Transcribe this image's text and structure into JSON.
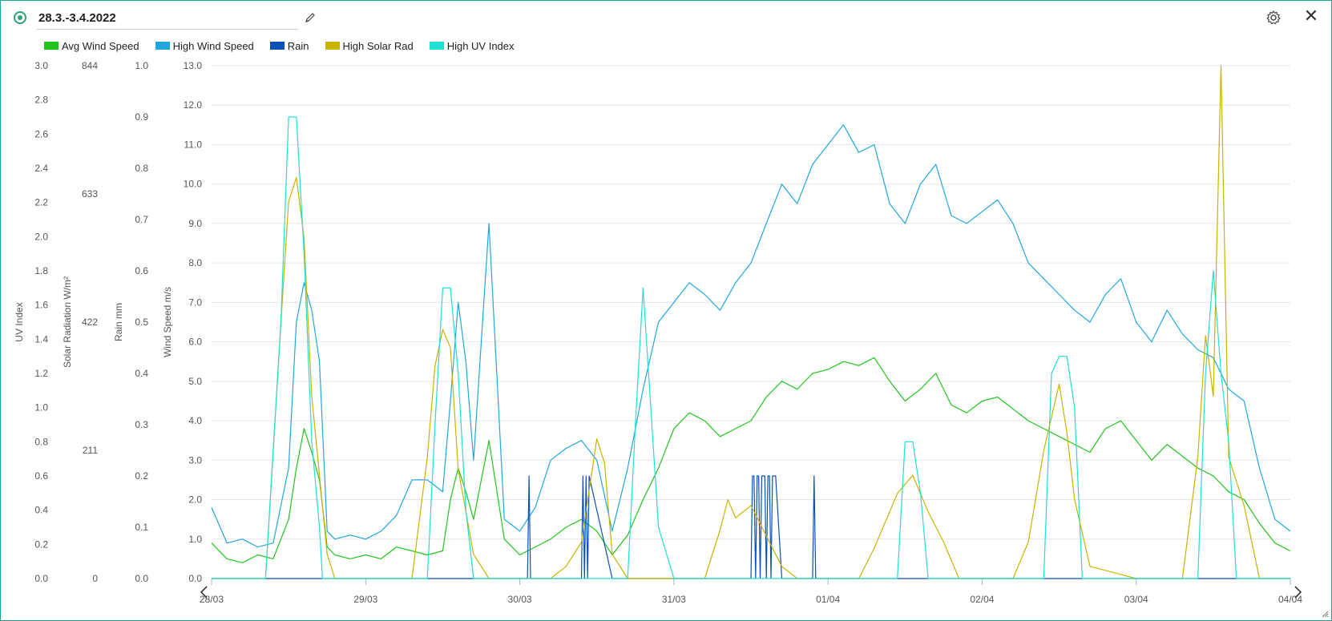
{
  "window": {
    "title": "28.3.-3.4.2022",
    "close_label": "✕"
  },
  "icons": {
    "status": "status-dot-icon",
    "edit": "pencil-icon",
    "settings": "gear-icon",
    "close": "close-icon"
  },
  "legend": [
    {
      "label": "Avg Wind Speed",
      "color": "#22c41e"
    },
    {
      "label": "High Wind Speed",
      "color": "#20a7de"
    },
    {
      "label": "Rain",
      "color": "#0b4fb8"
    },
    {
      "label": "High Solar Rad",
      "color": "#c8b400"
    },
    {
      "label": "High UV Index",
      "color": "#1fe0d2"
    }
  ],
  "chart_data": {
    "type": "line",
    "title": "",
    "x_ticks": [
      "28/03",
      "29/03",
      "30/03",
      "31/03",
      "01/04",
      "02/04",
      "03/04",
      "04/04"
    ],
    "axes": [
      {
        "name": "uv",
        "ylabel": "UV Index",
        "ylim": [
          0,
          3.0
        ],
        "ticks": [
          "0.0",
          "0.2",
          "0.4",
          "0.6",
          "0.8",
          "1.0",
          "1.2",
          "1.4",
          "1.6",
          "1.8",
          "2.0",
          "2.2",
          "2.4",
          "2.6",
          "2.8",
          "3.0"
        ]
      },
      {
        "name": "solar",
        "ylabel": "Solar Radiation W/m²",
        "ylim": [
          0,
          844
        ],
        "ticks": [
          "0",
          "211",
          "422",
          "633",
          "844"
        ]
      },
      {
        "name": "rain",
        "ylabel": "Rain mm",
        "ylim": [
          0,
          1.0
        ],
        "ticks": [
          "0.0",
          "0.1",
          "0.2",
          "0.3",
          "0.4",
          "0.5",
          "0.6",
          "0.7",
          "0.8",
          "0.9",
          "1.0"
        ]
      },
      {
        "name": "wind",
        "ylabel": "Wind Speed m/s",
        "ylim": [
          0,
          13.0
        ],
        "ticks": [
          "0.0",
          "1.0",
          "2.0",
          "3.0",
          "4.0",
          "5.0",
          "6.0",
          "7.0",
          "8.0",
          "9.0",
          "10.0",
          "11.0",
          "12.0",
          "13.0"
        ]
      }
    ],
    "grid": true,
    "legend_position": "top-left",
    "series": [
      {
        "name": "Avg Wind Speed",
        "axis": "wind",
        "color": "#22c41e",
        "x": [
          0,
          0.1,
          0.2,
          0.3,
          0.4,
          0.5,
          0.55,
          0.6,
          0.65,
          0.7,
          0.75,
          0.8,
          0.9,
          1.0,
          1.1,
          1.2,
          1.3,
          1.4,
          1.5,
          1.55,
          1.6,
          1.65,
          1.7,
          1.8,
          1.9,
          2.0,
          2.1,
          2.2,
          2.3,
          2.4,
          2.5,
          2.6,
          2.7,
          2.8,
          2.9,
          3.0,
          3.1,
          3.2,
          3.3,
          3.4,
          3.5,
          3.6,
          3.7,
          3.8,
          3.9,
          4.0,
          4.1,
          4.2,
          4.3,
          4.4,
          4.5,
          4.6,
          4.7,
          4.8,
          4.9,
          5.0,
          5.1,
          5.2,
          5.3,
          5.4,
          5.5,
          5.6,
          5.7,
          5.8,
          5.9,
          6.0,
          6.1,
          6.2,
          6.3,
          6.4,
          6.5,
          6.6,
          6.7,
          6.8,
          6.9,
          7.0
        ],
        "y": [
          0.9,
          0.5,
          0.4,
          0.6,
          0.5,
          1.5,
          2.8,
          3.8,
          3.2,
          2.5,
          0.8,
          0.6,
          0.5,
          0.6,
          0.5,
          0.8,
          0.7,
          0.6,
          0.7,
          2.0,
          2.8,
          2.2,
          1.5,
          3.5,
          1.0,
          0.6,
          0.8,
          1.0,
          1.3,
          1.5,
          1.2,
          0.6,
          1.1,
          2.0,
          2.8,
          3.8,
          4.2,
          4.0,
          3.6,
          3.8,
          4.0,
          4.6,
          5.0,
          4.8,
          5.2,
          5.3,
          5.5,
          5.4,
          5.6,
          5.0,
          4.5,
          4.8,
          5.2,
          4.4,
          4.2,
          4.5,
          4.6,
          4.3,
          4.0,
          3.8,
          3.6,
          3.4,
          3.2,
          3.8,
          4.0,
          3.5,
          3.0,
          3.4,
          3.1,
          2.8,
          2.6,
          2.2,
          2.0,
          1.4,
          0.9,
          0.7
        ]
      },
      {
        "name": "High Wind Speed",
        "axis": "wind",
        "color": "#20a7de",
        "x": [
          0,
          0.1,
          0.2,
          0.3,
          0.4,
          0.5,
          0.55,
          0.6,
          0.65,
          0.7,
          0.75,
          0.8,
          0.9,
          1.0,
          1.1,
          1.2,
          1.3,
          1.4,
          1.5,
          1.55,
          1.6,
          1.65,
          1.7,
          1.8,
          1.9,
          2.0,
          2.1,
          2.2,
          2.3,
          2.4,
          2.5,
          2.6,
          2.7,
          2.8,
          2.9,
          3.0,
          3.1,
          3.2,
          3.3,
          3.4,
          3.5,
          3.6,
          3.7,
          3.8,
          3.9,
          4.0,
          4.1,
          4.2,
          4.3,
          4.4,
          4.5,
          4.6,
          4.7,
          4.8,
          4.9,
          5.0,
          5.1,
          5.2,
          5.3,
          5.4,
          5.5,
          5.6,
          5.7,
          5.8,
          5.9,
          6.0,
          6.1,
          6.2,
          6.3,
          6.4,
          6.5,
          6.6,
          6.7,
          6.8,
          6.9,
          7.0
        ],
        "y": [
          1.8,
          0.9,
          1.0,
          0.8,
          0.9,
          2.8,
          6.5,
          7.5,
          6.8,
          5.5,
          1.2,
          1.0,
          1.1,
          1.0,
          1.2,
          1.6,
          2.5,
          2.5,
          2.2,
          4.5,
          7.0,
          5.5,
          3.0,
          9.0,
          1.5,
          1.2,
          1.8,
          3.0,
          3.3,
          3.5,
          3.0,
          1.2,
          2.8,
          4.8,
          6.5,
          7.0,
          7.5,
          7.2,
          6.8,
          7.5,
          8.0,
          9.0,
          10.0,
          9.5,
          10.5,
          11.0,
          11.5,
          10.8,
          11.0,
          9.5,
          9.0,
          10.0,
          10.5,
          9.2,
          9.0,
          9.3,
          9.6,
          9.0,
          8.0,
          7.6,
          7.2,
          6.8,
          6.5,
          7.2,
          7.6,
          6.5,
          6.0,
          6.8,
          6.2,
          5.8,
          5.6,
          4.8,
          4.5,
          2.8,
          1.5,
          1.2
        ]
      },
      {
        "name": "Rain",
        "axis": "rain",
        "color": "#0b4fb8",
        "x": [
          0,
          2.0,
          2.05,
          2.06,
          2.07,
          2.4,
          2.41,
          2.42,
          2.43,
          2.44,
          2.45,
          2.6,
          3.5,
          3.51,
          3.52,
          3.53,
          3.54,
          3.55,
          3.56,
          3.57,
          3.58,
          3.59,
          3.6,
          3.61,
          3.62,
          3.63,
          3.64,
          3.65,
          3.66,
          3.7,
          3.9,
          3.91,
          3.92,
          7.0
        ],
        "y": [
          0,
          0,
          0,
          0.2,
          0,
          0,
          0.2,
          0,
          0.2,
          0,
          0.2,
          0,
          0,
          0.2,
          0.2,
          0,
          0.2,
          0.2,
          0,
          0.2,
          0.2,
          0.2,
          0,
          0.2,
          0.2,
          0,
          0.2,
          0.2,
          0.2,
          0,
          0,
          0.2,
          0,
          0
        ]
      },
      {
        "name": "High Solar Rad",
        "axis": "solar",
        "color": "#c8b400",
        "x": [
          0,
          0.35,
          0.45,
          0.5,
          0.55,
          0.6,
          0.65,
          0.75,
          0.8,
          0.85,
          1.3,
          1.4,
          1.45,
          1.5,
          1.55,
          1.6,
          1.7,
          1.8,
          1.9,
          2.2,
          2.3,
          2.4,
          2.5,
          2.55,
          2.6,
          2.7,
          2.8,
          3.0,
          3.2,
          3.3,
          3.35,
          3.4,
          3.5,
          3.6,
          3.7,
          3.8,
          4.2,
          4.3,
          4.45,
          4.55,
          4.65,
          4.75,
          4.85,
          5.0,
          5.2,
          5.3,
          5.4,
          5.5,
          5.55,
          5.6,
          5.7,
          6.0,
          6.2,
          6.3,
          6.4,
          6.45,
          6.5,
          6.55,
          6.6,
          6.7,
          6.8,
          7.0
        ],
        "y": [
          0,
          0,
          420,
          620,
          660,
          560,
          300,
          40,
          0,
          0,
          0,
          200,
          350,
          410,
          380,
          180,
          40,
          0,
          0,
          0,
          20,
          60,
          230,
          190,
          40,
          0,
          0,
          0,
          0,
          80,
          130,
          100,
          120,
          70,
          20,
          0,
          0,
          50,
          140,
          170,
          110,
          60,
          0,
          0,
          0,
          60,
          210,
          320,
          240,
          130,
          20,
          0,
          0,
          0,
          200,
          400,
          300,
          844,
          200,
          120,
          0,
          0
        ]
      },
      {
        "name": "High UV Index",
        "axis": "uv",
        "color": "#1fe0d2",
        "x": [
          0,
          0.3,
          0.35,
          0.45,
          0.5,
          0.55,
          0.6,
          0.65,
          0.7,
          0.72,
          1.4,
          1.45,
          1.5,
          1.55,
          1.6,
          1.65,
          1.7,
          2.7,
          2.75,
          2.8,
          2.85,
          2.9,
          3.0,
          4.4,
          4.45,
          4.5,
          4.55,
          4.6,
          4.65,
          5.4,
          5.45,
          5.5,
          5.55,
          5.6,
          5.65,
          6.4,
          6.45,
          6.5,
          6.55,
          6.6,
          6.65,
          7.0
        ],
        "y": [
          0,
          0,
          0,
          1.5,
          2.7,
          2.7,
          1.9,
          0.8,
          0.3,
          0,
          0,
          0.9,
          1.7,
          1.7,
          1.2,
          0.4,
          0,
          0,
          0.9,
          1.7,
          1.0,
          0.3,
          0,
          0,
          0,
          0.8,
          0.8,
          0.5,
          0,
          0,
          1.2,
          1.3,
          1.3,
          1.0,
          0,
          0,
          1.2,
          1.8,
          1.2,
          0.8,
          0,
          0
        ]
      }
    ]
  }
}
